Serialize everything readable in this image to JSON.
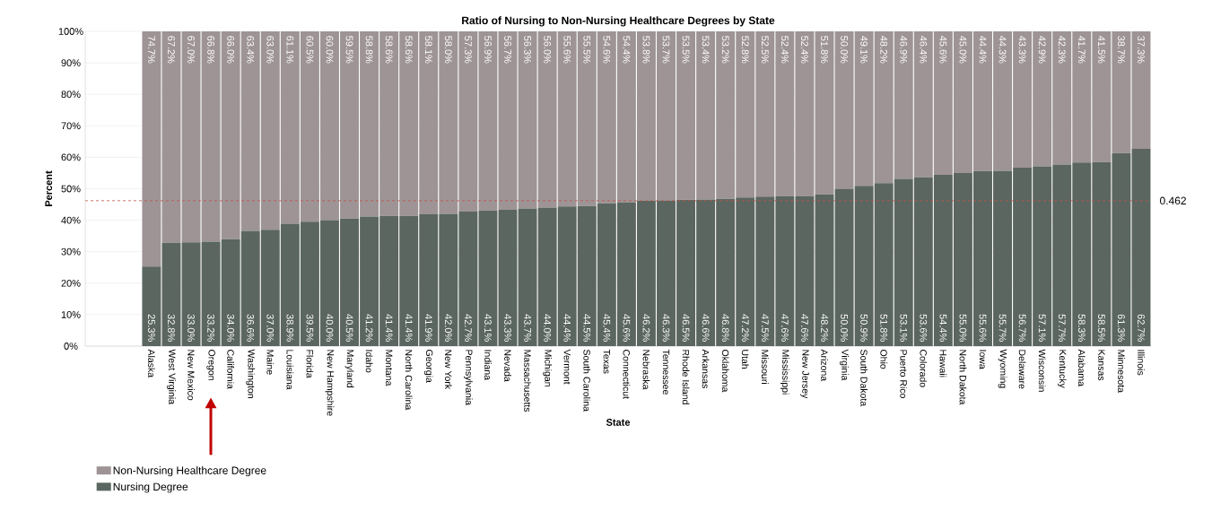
{
  "chart_data": {
    "type": "bar",
    "stacked": true,
    "title": "Ratio of Nursing to Non-Nursing Healthcare Degrees by State",
    "xlabel": "State",
    "ylabel": "Percent",
    "categories": [
      "Alaska",
      "West Virginia",
      "New Mexico",
      "Oregon",
      "California",
      "Washington",
      "Maine",
      "Louisiana",
      "Florida",
      "New Hampshire",
      "Maryland",
      "Idaho",
      "Montana",
      "North Carolina",
      "Georgia",
      "New York",
      "Pennsylvania",
      "Indiana",
      "Nevada",
      "Massachusetts",
      "Michigan",
      "Vermont",
      "South Carolina",
      "Texas",
      "Connecticut",
      "Nebraska",
      "Tennessee",
      "Rhode Island",
      "Arkansas",
      "Oklahoma",
      "Utah",
      "Missouri",
      "Mississippi",
      "New Jersey",
      "Arizona",
      "Virginia",
      "South Dakota",
      "Ohio",
      "Puerto Rico",
      "Colorado",
      "Hawaii",
      "North Dakota",
      "Iowa",
      "Wyoming",
      "Delaware",
      "Wisconsin",
      "Kentucky",
      "Alabama",
      "Kansas",
      "Minnesota",
      "Illinois"
    ],
    "series": [
      {
        "name": "Nursing Degree",
        "color": "#5b6660",
        "values": [
          25.3,
          32.8,
          33.0,
          33.2,
          34.0,
          36.6,
          37.0,
          38.9,
          39.5,
          40.0,
          40.5,
          41.2,
          41.4,
          41.4,
          41.9,
          42.0,
          42.7,
          43.1,
          43.3,
          43.7,
          44.0,
          44.4,
          44.5,
          45.4,
          45.6,
          46.2,
          46.3,
          46.5,
          46.6,
          46.8,
          47.2,
          47.5,
          47.6,
          47.6,
          48.2,
          50.0,
          50.9,
          51.8,
          53.1,
          53.6,
          54.4,
          55.0,
          55.6,
          55.7,
          56.7,
          57.1,
          57.7,
          58.3,
          58.5,
          61.3,
          62.7
        ],
        "value_labels": [
          "25.3%",
          "32.8%",
          "33.0%",
          "33.2%",
          "34.0%",
          "36.6%",
          "37.0%",
          "38.9%",
          "39.5%",
          "40.0%",
          "40.5%",
          "41.2%",
          "41.4%",
          "41.4%",
          "41.9%",
          "42.0%",
          "42.7%",
          "43.1%",
          "43.3%",
          "43.7%",
          "44.0%",
          "44.4%",
          "44.5%",
          "45.4%",
          "45.6%",
          "46.2%",
          "46.3%",
          "46.5%",
          "46.6%",
          "46.8%",
          "47.2%",
          "47.5%",
          "47.6%",
          "47.6%",
          "48.2%",
          "50.0%",
          "50.9%",
          "51.8%",
          "53.1%",
          "53.6%",
          "54.4%",
          "55.0%",
          "55.6%",
          "55.7%",
          "56.7%",
          "57.1%",
          "57.7%",
          "58.3%",
          "58.5%",
          "61.3%",
          "62.7%"
        ]
      },
      {
        "name": "Non-Nursing Healthcare Degree",
        "color": "#9e9495",
        "values": [
          74.7,
          67.2,
          67.0,
          66.8,
          66.0,
          63.4,
          63.0,
          61.1,
          60.5,
          60.0,
          59.5,
          58.8,
          58.6,
          58.6,
          58.1,
          58.0,
          57.3,
          56.9,
          56.7,
          56.3,
          56.0,
          55.6,
          55.5,
          54.6,
          54.4,
          53.8,
          53.7,
          53.5,
          53.4,
          53.2,
          52.8,
          52.5,
          52.4,
          52.4,
          51.8,
          50.0,
          49.1,
          48.2,
          46.9,
          46.4,
          45.6,
          45.0,
          44.4,
          44.3,
          43.3,
          42.9,
          42.3,
          41.7,
          41.5,
          38.7,
          37.3
        ],
        "value_labels": [
          "74.7%",
          "67.2%",
          "67.0%",
          "66.8%",
          "66.0%",
          "63.4%",
          "63.0%",
          "61.1%",
          "60.5%",
          "60.0%",
          "59.5%",
          "58.8%",
          "58.6%",
          "58.6%",
          "58.1%",
          "58.0%",
          "57.3%",
          "56.9%",
          "56.7%",
          "56.3%",
          "56.0%",
          "55.6%",
          "55.5%",
          "54.6%",
          "54.4%",
          "53.8%",
          "53.7%",
          "53.5%",
          "53.4%",
          "53.2%",
          "52.8%",
          "52.5%",
          "52.4%",
          "52.4%",
          "51.8%",
          "50.0%",
          "49.1%",
          "48.2%",
          "46.9%",
          "46.4%",
          "45.6%",
          "45.0%",
          "44.4%",
          "44.3%",
          "43.3%",
          "42.9%",
          "42.3%",
          "41.7%",
          "41.5%",
          "38.7%",
          "37.3%"
        ]
      }
    ],
    "ylim": [
      0,
      100
    ],
    "yticks": [
      {
        "value": 0,
        "label": "0%"
      },
      {
        "value": 10,
        "label": "10%"
      },
      {
        "value": 20,
        "label": "20%"
      },
      {
        "value": 30,
        "label": "30%"
      },
      {
        "value": 40,
        "label": "40%"
      },
      {
        "value": 50,
        "label": "50%"
      },
      {
        "value": 60,
        "label": "60%"
      },
      {
        "value": 70,
        "label": "70%"
      },
      {
        "value": 80,
        "label": "80%"
      },
      {
        "value": 90,
        "label": "90%"
      },
      {
        "value": 100,
        "label": "100%"
      }
    ],
    "grid": "y",
    "legend": "bottom left",
    "ref_lines": [
      {
        "axis": "y",
        "value": 46.2,
        "color": "#c0504d",
        "line_style": "dashed"
      }
    ],
    "annotations": [
      "0.462"
    ]
  }
}
